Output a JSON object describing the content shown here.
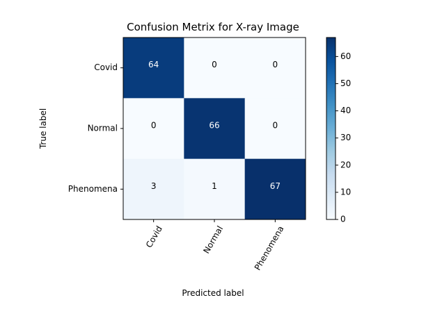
{
  "chart_data": {
    "type": "heatmap",
    "title": "Confusion Metrix for X-ray Image",
    "xlabel": "Predicted label",
    "ylabel": "True label",
    "x_categories": [
      "Covid",
      "Normal",
      "Phenomena"
    ],
    "y_categories": [
      "Covid",
      "Normal",
      "Phenomena"
    ],
    "values": [
      [
        64,
        0,
        0
      ],
      [
        0,
        66,
        0
      ],
      [
        3,
        1,
        67
      ]
    ],
    "cell_labels": [
      [
        "64",
        "0",
        "0"
      ],
      [
        "0",
        "66",
        "0"
      ],
      [
        "3",
        "1",
        "67"
      ]
    ],
    "colormap": "Blues",
    "color_range": [
      0,
      67
    ],
    "colorbar_ticks": [
      0,
      10,
      20,
      30,
      40,
      50,
      60
    ],
    "colorbar_tick_labels": [
      "0",
      "10",
      "20",
      "30",
      "40",
      "50",
      "60"
    ],
    "x_tick_rotation_deg": 60,
    "colors": {
      "low": "#f7fbff",
      "high": "#08306b",
      "text_light": "#ffffff",
      "text_dark": "#000000"
    }
  }
}
